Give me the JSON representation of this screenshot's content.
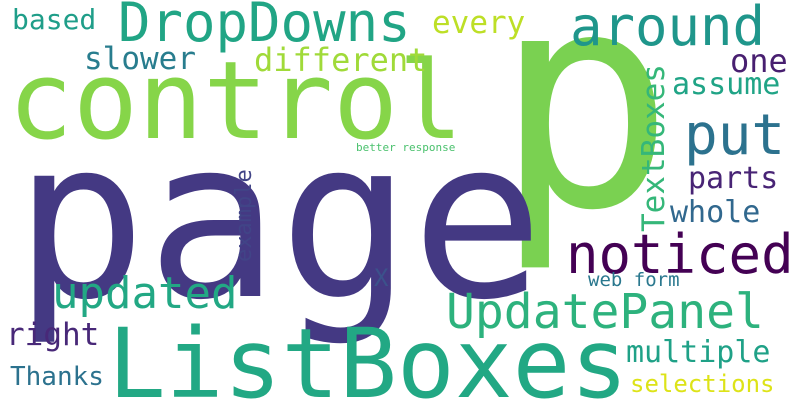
{
  "words": {
    "p": {
      "text": "p",
      "color": "#7ad151"
    },
    "page": {
      "text": "page",
      "color": "#443983"
    },
    "control": {
      "text": "control",
      "color": "#86d549"
    },
    "listboxes": {
      "text": "ListBoxes",
      "color": "#22a884"
    },
    "dropdowns": {
      "text": "DropDowns",
      "color": "#21a585"
    },
    "around": {
      "text": "around",
      "color": "#1f968b"
    },
    "put": {
      "text": "put",
      "color": "#2c728e"
    },
    "noticed": {
      "text": "noticed",
      "color": "#440154"
    },
    "updatepanel": {
      "text": "UpdatePanel",
      "color": "#2db27d"
    },
    "updated": {
      "text": "updated",
      "color": "#22a884"
    },
    "textboxes": {
      "text": "TextBoxes",
      "color": "#35b779"
    },
    "different": {
      "text": "different",
      "color": "#a0da39"
    },
    "slower": {
      "text": "slower",
      "color": "#287d8e"
    },
    "based": {
      "text": "based",
      "color": "#1f9e89"
    },
    "every": {
      "text": "every",
      "color": "#bddf26"
    },
    "one": {
      "text": "one",
      "color": "#481f70"
    },
    "assume": {
      "text": "assume",
      "color": "#20a486"
    },
    "parts": {
      "text": "parts",
      "color": "#482475"
    },
    "whole": {
      "text": "whole",
      "color": "#31688e"
    },
    "example": {
      "text": "example",
      "color": "#414487"
    },
    "x": {
      "text": "X",
      "color": "#3b528b"
    },
    "web_form": {
      "text": "web form",
      "color": "#2a788e"
    },
    "right": {
      "text": "right",
      "color": "#482878"
    },
    "multiple": {
      "text": "multiple",
      "color": "#1fa187"
    },
    "thanks": {
      "text": "Thanks",
      "color": "#2c728e"
    },
    "selections": {
      "text": "selections",
      "color": "#dde318"
    },
    "better_response": {
      "text": "better response",
      "color": "#4ac16d"
    }
  }
}
